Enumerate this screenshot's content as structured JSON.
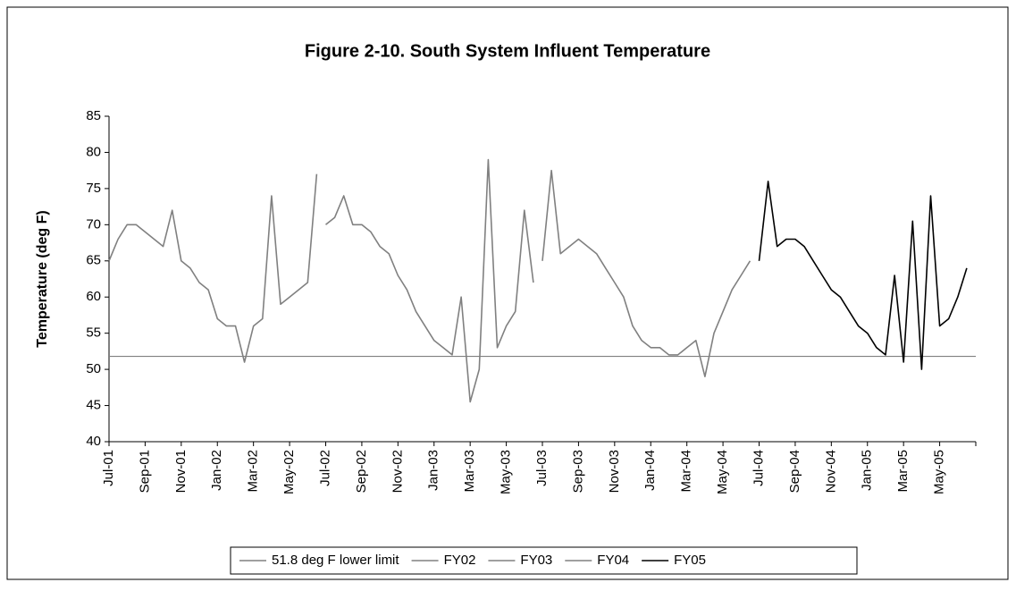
{
  "chart_data": {
    "type": "line",
    "title": "Figure 2-10.  South System Influent Temperature",
    "y_label": "Temperature (deg F)",
    "categories": [
      "Jul-01",
      null,
      null,
      null,
      "Sep-01",
      null,
      null,
      null,
      "Nov-01",
      null,
      null,
      null,
      "Jan-02",
      null,
      null,
      null,
      "Mar-02",
      null,
      null,
      null,
      "May-02",
      null,
      null,
      null,
      "Jul-02",
      null,
      null,
      null,
      "Sep-02",
      null,
      null,
      null,
      "Nov-02",
      null,
      null,
      null,
      "Jan-03",
      null,
      null,
      null,
      "Mar-03",
      null,
      null,
      null,
      "May-03",
      null,
      null,
      null,
      "Jul-03",
      null,
      null,
      null,
      "Sep-03",
      null,
      null,
      null,
      "Nov-03",
      null,
      null,
      null,
      "Jan-04",
      null,
      null,
      null,
      "Mar-04",
      null,
      null,
      null,
      "May-04",
      null,
      null,
      null,
      "Jul-04",
      null,
      null,
      null,
      "Sep-04",
      null,
      null,
      null,
      "Nov-04",
      null,
      null,
      null,
      "Jan-05",
      null,
      null,
      null,
      "Mar-05",
      null,
      null,
      null,
      "May-05",
      null,
      null,
      null
    ],
    "reference_line": {
      "name": "51.8 deg F lower limit",
      "value": 51.8,
      "color": "#808080"
    },
    "series": [
      {
        "name": "FY02",
        "color": "#808080",
        "values": [
          65,
          68,
          70,
          70,
          69,
          68,
          67,
          72,
          65,
          64,
          62,
          61,
          57,
          56,
          56,
          51,
          56,
          57,
          74,
          59,
          60,
          61,
          62,
          77,
          null,
          null,
          null,
          null,
          null,
          null,
          null,
          null,
          null,
          null,
          null,
          null,
          null,
          null,
          null,
          null,
          null,
          null,
          null,
          null,
          null,
          null,
          null,
          null,
          null,
          null,
          null,
          null,
          null,
          null,
          null,
          null,
          null,
          null,
          null,
          null,
          null,
          null,
          null,
          null,
          null,
          null,
          null,
          null,
          null,
          null,
          null,
          null,
          null,
          null,
          null,
          null,
          null,
          null,
          null,
          null,
          null,
          null,
          null,
          null,
          null,
          null,
          null,
          null,
          null,
          null,
          null,
          null,
          null,
          null,
          null,
          null
        ]
      },
      {
        "name": "FY03",
        "color": "#808080",
        "values": [
          null,
          null,
          null,
          null,
          null,
          null,
          null,
          null,
          null,
          null,
          null,
          null,
          null,
          null,
          null,
          null,
          null,
          null,
          null,
          null,
          null,
          null,
          null,
          null,
          70,
          71,
          74,
          70,
          70,
          69,
          67,
          66,
          63,
          61,
          58,
          56,
          54,
          53,
          52,
          60,
          45.5,
          50,
          79,
          53,
          56,
          58,
          72,
          62,
          null,
          null,
          null,
          null,
          null,
          null,
          null,
          null,
          null,
          null,
          null,
          null,
          null,
          null,
          null,
          null,
          null,
          null,
          null,
          null,
          null,
          null,
          null,
          null,
          null,
          null,
          null,
          null,
          null,
          null,
          null,
          null,
          null,
          null,
          null,
          null,
          null,
          null,
          null,
          null,
          null,
          null,
          null,
          null,
          null,
          null,
          null,
          null
        ]
      },
      {
        "name": "FY04",
        "color": "#808080",
        "values": [
          null,
          null,
          null,
          null,
          null,
          null,
          null,
          null,
          null,
          null,
          null,
          null,
          null,
          null,
          null,
          null,
          null,
          null,
          null,
          null,
          null,
          null,
          null,
          null,
          null,
          null,
          null,
          null,
          null,
          null,
          null,
          null,
          null,
          null,
          null,
          null,
          null,
          null,
          null,
          null,
          null,
          null,
          null,
          null,
          null,
          null,
          null,
          null,
          65,
          77.5,
          66,
          67,
          68,
          67,
          66,
          64,
          62,
          60,
          56,
          54,
          53,
          53,
          52,
          52,
          53,
          54,
          49,
          55,
          58,
          61,
          63,
          65,
          null,
          null,
          null,
          null,
          null,
          null,
          null,
          null,
          null,
          null,
          null,
          null,
          null,
          null,
          null,
          null,
          null,
          null,
          null,
          null,
          null,
          null,
          null,
          null
        ]
      },
      {
        "name": "FY05",
        "color": "#000000",
        "values": [
          null,
          null,
          null,
          null,
          null,
          null,
          null,
          null,
          null,
          null,
          null,
          null,
          null,
          null,
          null,
          null,
          null,
          null,
          null,
          null,
          null,
          null,
          null,
          null,
          null,
          null,
          null,
          null,
          null,
          null,
          null,
          null,
          null,
          null,
          null,
          null,
          null,
          null,
          null,
          null,
          null,
          null,
          null,
          null,
          null,
          null,
          null,
          null,
          null,
          null,
          null,
          null,
          null,
          null,
          null,
          null,
          null,
          null,
          null,
          null,
          null,
          null,
          null,
          null,
          null,
          null,
          null,
          null,
          null,
          null,
          null,
          null,
          65,
          76,
          67,
          68,
          68,
          67,
          65,
          63,
          61,
          60,
          58,
          56,
          55,
          53,
          52,
          63,
          51,
          70.5,
          50,
          74,
          56,
          57,
          60,
          64
        ]
      }
    ],
    "ylim": [
      40,
      85
    ],
    "yticks": [
      40,
      45,
      50,
      55,
      60,
      65,
      70,
      75,
      80,
      85
    ],
    "grid": false
  }
}
